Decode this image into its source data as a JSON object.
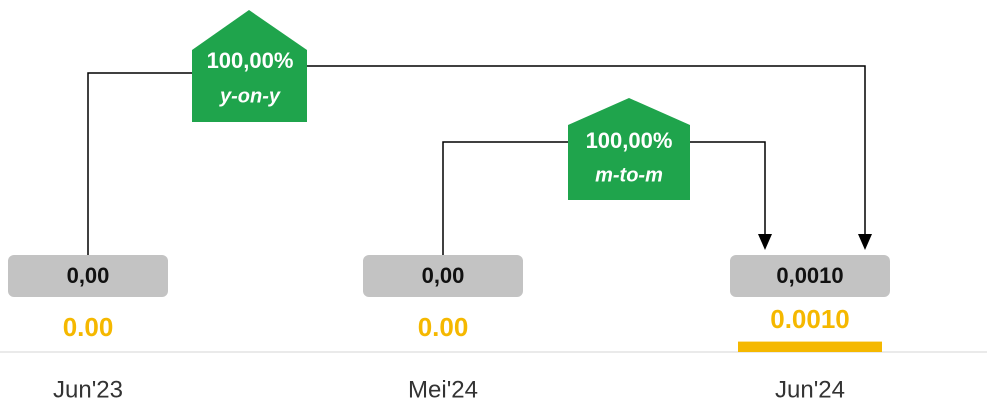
{
  "chart_data": {
    "type": "bar",
    "categories": [
      "Jun'23",
      "Mei'24",
      "Jun'24"
    ],
    "values": [
      0,
      0,
      0.001
    ],
    "value_labels": [
      "0.00",
      "0.00",
      "0.0010"
    ],
    "box_labels": [
      "0,00",
      "0,00",
      "0,0010"
    ],
    "color": "#f5b800",
    "ylim": [
      0,
      0.03
    ],
    "annotations": [
      {
        "value": "100,00%",
        "label": "y-on-y"
      },
      {
        "value": "100,00%",
        "label": "m-to-m"
      }
    ]
  }
}
